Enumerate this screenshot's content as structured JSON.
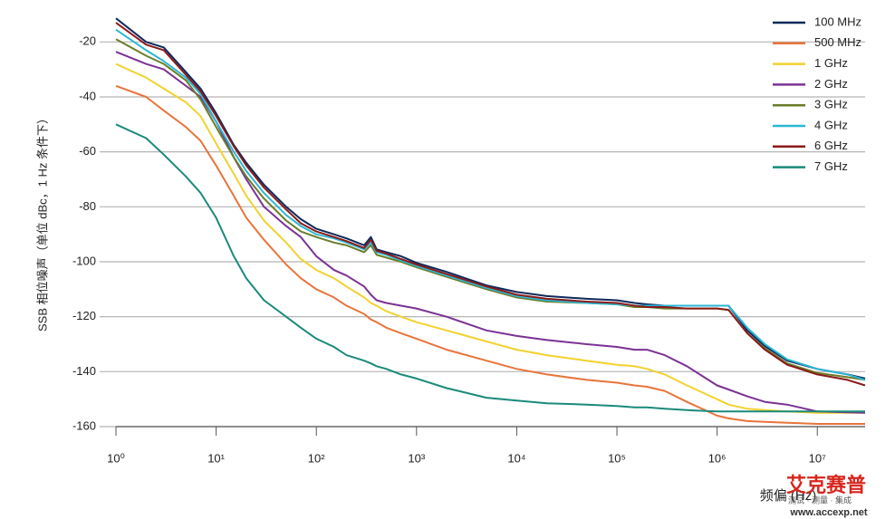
{
  "chart_data": {
    "type": "line",
    "y_label": "SSB 相位噪声（单位 dBc，1 Hz 条件下）",
    "x_label": "频偏 (Hz)",
    "log_x": true,
    "grid": true,
    "legend": "top-right",
    "xlim": [
      1,
      30000000
    ],
    "ylim": [
      -160,
      -11
    ],
    "xticks": [
      {
        "value": 1,
        "label": "10⁰"
      },
      {
        "value": 10,
        "label": "10¹"
      },
      {
        "value": 100,
        "label": "10²"
      },
      {
        "value": 1000,
        "label": "10³"
      },
      {
        "value": 10000,
        "label": "10⁴"
      },
      {
        "value": 100000,
        "label": "10⁵"
      },
      {
        "value": 1000000,
        "label": "10⁶"
      },
      {
        "value": 10000000,
        "label": "10⁷"
      }
    ],
    "yticks": [
      -20,
      -40,
      -60,
      -80,
      -100,
      -120,
      -140,
      -160
    ],
    "x": [
      1,
      2,
      3,
      5,
      7,
      10,
      15,
      20,
      30,
      50,
      70,
      100,
      150,
      200,
      300,
      350,
      400,
      500,
      700,
      1000,
      2000,
      5000,
      10000,
      20000,
      50000,
      100000,
      150000,
      200000,
      300000,
      500000,
      1000000,
      1300000,
      2000000,
      3000000,
      5000000,
      10000000,
      20000000,
      30000000
    ],
    "series": [
      {
        "name": "100 MHz",
        "color": "#0d2a5c",
        "values": [
          -11.4,
          -20,
          -22,
          -31,
          -37,
          -46,
          -57.5,
          -64,
          -72,
          -80,
          -84.5,
          -88,
          -90,
          -91.5,
          -94,
          -91,
          -95.5,
          -96.5,
          -98,
          -100.4,
          -103.7,
          -108.6,
          -111,
          -112.5,
          -113.5,
          -114,
          -115,
          -115.5,
          -116,
          -116,
          -116,
          -116,
          -125,
          -130.7,
          -136,
          -139,
          -141,
          -142.5
        ]
      },
      {
        "name": "500 MHz",
        "color": "#e8743b",
        "values": [
          -36,
          -40,
          -45,
          -51,
          -56,
          -65,
          -76,
          -84,
          -92,
          -101,
          -106,
          -110,
          -113,
          -116,
          -119,
          -121,
          -122,
          -124,
          -126,
          -128,
          -132,
          -136,
          -139,
          -141,
          -143,
          -144,
          -145,
          -145.5,
          -147,
          -151,
          -156,
          -157,
          -158,
          -158.3,
          -158.6,
          -159,
          -159,
          -159
        ]
      },
      {
        "name": "1 GHz",
        "color": "#f2d22e",
        "values": [
          -28,
          -33,
          -37,
          -42,
          -47,
          -57,
          -68,
          -76,
          -85,
          -93,
          -99,
          -103,
          -106,
          -109,
          -113,
          -115,
          -116,
          -118,
          -120,
          -122,
          -125,
          -129,
          -132,
          -134,
          -136,
          -137.5,
          -138,
          -139,
          -141,
          -145,
          -150,
          -152,
          -153.5,
          -154,
          -154.5,
          -155,
          -155,
          -155
        ]
      },
      {
        "name": "2 GHz",
        "color": "#7b3294",
        "values": [
          -23.6,
          -28,
          -30,
          -36,
          -40,
          -49,
          -62,
          -70,
          -80,
          -87,
          -91,
          -98,
          -103,
          -105,
          -109,
          -112,
          -114,
          -115,
          -116,
          -117,
          -120,
          -125,
          -127,
          -128.5,
          -130,
          -131,
          -132,
          -132,
          -134,
          -138,
          -145,
          -146.5,
          -149,
          -151,
          -152,
          -154.5,
          -154.8,
          -155
        ]
      },
      {
        "name": "3 GHz",
        "color": "#6b7d2a",
        "values": [
          -19,
          -25,
          -28,
          -34,
          -41,
          -51,
          -62,
          -69,
          -77,
          -85,
          -89,
          -91,
          -93,
          -94,
          -96.5,
          -94,
          -97.5,
          -98.5,
          -100,
          -102,
          -105.5,
          -110,
          -113,
          -114.5,
          -115,
          -115.5,
          -116.5,
          -116.5,
          -117,
          -117,
          -117,
          -117.5,
          -126,
          -131.5,
          -137,
          -140.5,
          -142,
          -143
        ]
      },
      {
        "name": "4 GHz",
        "color": "#2ab7d6",
        "values": [
          -15.5,
          -23,
          -27,
          -33,
          -39,
          -49,
          -60,
          -67,
          -75,
          -83,
          -87,
          -90,
          -91.5,
          -93,
          -95.5,
          -93,
          -96.5,
          -97.5,
          -99.5,
          -101.5,
          -105,
          -109.5,
          -112.5,
          -114,
          -115,
          -115.5,
          -116,
          -116,
          -116,
          -116,
          -116,
          -116,
          -124,
          -130,
          -135.5,
          -139,
          -141,
          -143
        ]
      },
      {
        "name": "6 GHz",
        "color": "#8b1a1a",
        "values": [
          -13,
          -21,
          -23,
          -32,
          -38,
          -47,
          -58,
          -65,
          -73,
          -81,
          -86,
          -89,
          -91,
          -92.5,
          -95,
          -92,
          -96,
          -97,
          -99,
          -101,
          -104.5,
          -109,
          -112,
          -113.5,
          -114.5,
          -115,
          -116,
          -116.5,
          -116.5,
          -117,
          -117,
          -117.5,
          -126,
          -132,
          -137.5,
          -141,
          -143,
          -145
        ]
      },
      {
        "name": "7 GHz",
        "color": "#1a8a7a",
        "values": [
          -50,
          -55,
          -61,
          -69,
          -75,
          -84,
          -98,
          -106,
          -114,
          -120,
          -124,
          -128,
          -131,
          -134,
          -136,
          -137,
          -138,
          -139,
          -141,
          -142.5,
          -146,
          -149.5,
          -150.5,
          -151.5,
          -152,
          -152.5,
          -153,
          -153,
          -153.5,
          -154,
          -154.5,
          -154.5,
          -154.5,
          -154.5,
          -154.5,
          -154.5,
          -154.5,
          -154.5
        ]
      }
    ]
  },
  "watermark": {
    "brand": "艾克赛普",
    "slogan": "测试 · 测量 · 集成",
    "url": "www.accexp.net"
  }
}
